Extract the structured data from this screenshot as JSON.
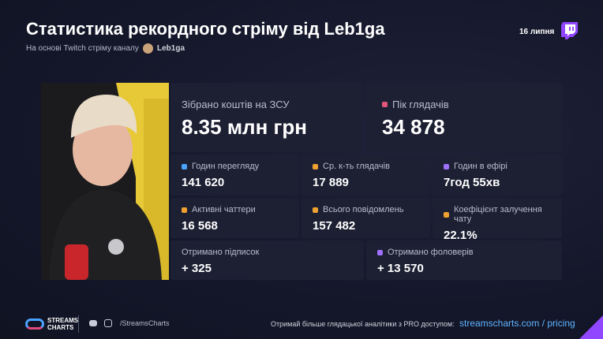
{
  "header": {
    "title": "Статистика рекордного стріму від Leb1ga",
    "subtitle": "На основі Twitch стріму каналу",
    "channel": "Leb1ga",
    "date": "16 липня"
  },
  "stats": [
    {
      "label": "Зібрано коштів на ЗСУ",
      "value": "8.35 млн грн"
    },
    {
      "label": "Пік глядачів",
      "value": "34 878"
    },
    {
      "label": "Годин перегляду",
      "value": "141 620"
    },
    {
      "label": "Ср. к-ть глядачів",
      "value": "17 889"
    },
    {
      "label": "Годин в ефірі",
      "value": "7год 55хв"
    },
    {
      "label": "Активні чаттери",
      "value": "16 568"
    },
    {
      "label": "Всього повідомлень",
      "value": "157 482"
    },
    {
      "label": "Коефіцієнт залучення чату",
      "value": "22.1%"
    },
    {
      "label": "Отримано підписок",
      "value": "+ 325"
    },
    {
      "label": "Отримано фоловерів",
      "value": "+ 13 570"
    }
  ],
  "footer": {
    "logo_top": "STREAMS",
    "logo_bottom": "CHARTS",
    "social": "/StreamsCharts",
    "promo": "Отримай більше глядацької аналітики з PRO доступом:",
    "link": "streamscharts.com / pricing"
  }
}
